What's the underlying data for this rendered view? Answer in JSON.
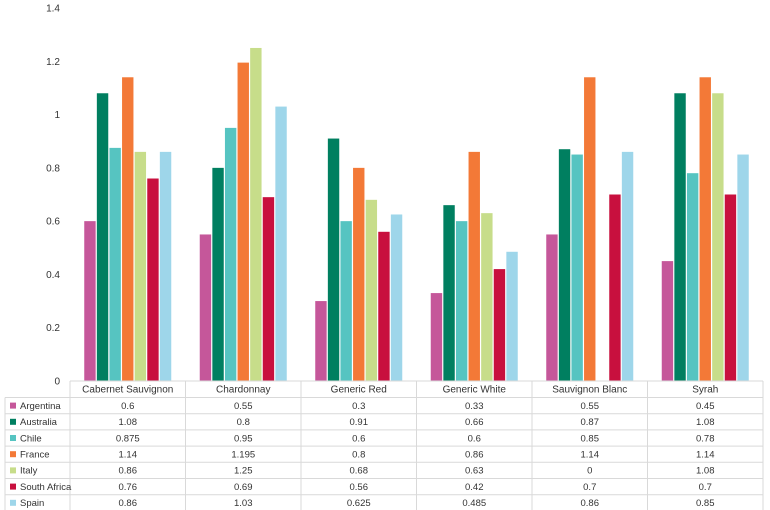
{
  "chart_data": {
    "type": "bar",
    "title": "",
    "xlabel": "",
    "ylabel": "",
    "ylim": [
      0,
      1.4
    ],
    "yticks": [
      "0",
      "0.2",
      "0.4",
      "0.6",
      "0.8",
      "1",
      "1.2",
      "1.4"
    ],
    "grid": false,
    "legend": "data-table",
    "categories": [
      "Cabernet Sauvignon",
      "Chardonnay",
      "Generic Red",
      "Generic White",
      "Sauvignon Blanc",
      "Syrah"
    ],
    "series": [
      {
        "name": "Argentina",
        "color": "#C5579A",
        "values": [
          0.6,
          0.55,
          0.3,
          0.33,
          0.55,
          0.45
        ],
        "labels": [
          "0.6",
          "0.55",
          "0.3",
          "0.33",
          "0.55",
          "0.45"
        ]
      },
      {
        "name": "Australia",
        "color": "#007F60",
        "values": [
          1.08,
          0.8,
          0.91,
          0.66,
          0.87,
          1.08
        ],
        "labels": [
          "1.08",
          "0.8",
          "0.91",
          "0.66",
          "0.87",
          "1.08"
        ]
      },
      {
        "name": "Chile",
        "color": "#56C4C1",
        "values": [
          0.875,
          0.95,
          0.6,
          0.6,
          0.85,
          0.78
        ],
        "labels": [
          "0.875",
          "0.95",
          "0.6",
          "0.6",
          "0.85",
          "0.78"
        ]
      },
      {
        "name": "France",
        "color": "#F37937",
        "values": [
          1.14,
          1.195,
          0.8,
          0.86,
          1.14,
          1.14
        ],
        "labels": [
          "1.14",
          "1.195",
          "0.8",
          "0.86",
          "1.14",
          "1.14"
        ]
      },
      {
        "name": "Italy",
        "color": "#C7DD8A",
        "values": [
          0.86,
          1.25,
          0.68,
          0.63,
          0,
          1.08
        ],
        "labels": [
          "0.86",
          "1.25",
          "0.68",
          "0.63",
          "0",
          "1.08"
        ]
      },
      {
        "name": "South Africa",
        "color": "#C8103E",
        "values": [
          0.76,
          0.69,
          0.56,
          0.42,
          0.7,
          0.7
        ],
        "labels": [
          "0.76",
          "0.69",
          "0.56",
          "0.42",
          "0.7",
          "0.7"
        ]
      },
      {
        "name": "Spain",
        "color": "#9ED6EA",
        "values": [
          0.86,
          1.03,
          0.625,
          0.485,
          0.86,
          0.85
        ],
        "labels": [
          "0.86",
          "1.03",
          "0.625",
          "0.485",
          "0.86",
          "0.85"
        ]
      }
    ]
  }
}
